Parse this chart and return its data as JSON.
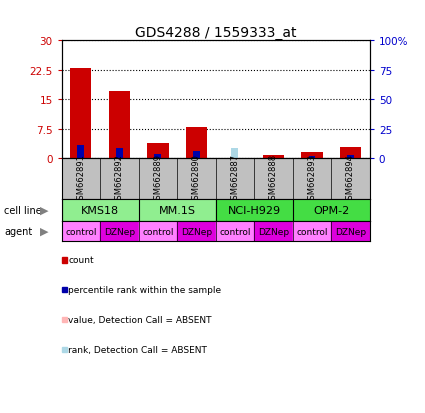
{
  "title": "GDS4288 / 1559333_at",
  "samples": [
    "GSM662891",
    "GSM662892",
    "GSM662889",
    "GSM662890",
    "GSM662887",
    "GSM662888",
    "GSM662893",
    "GSM662894"
  ],
  "count_values": [
    23.0,
    17.0,
    4.0,
    8.0,
    0.2,
    0.8,
    1.5,
    3.0
  ],
  "count_absent": [
    false,
    false,
    false,
    false,
    true,
    false,
    false,
    false
  ],
  "rank_values": [
    11.0,
    8.5,
    3.5,
    6.5,
    8.5,
    0.5,
    2.0,
    2.5
  ],
  "rank_absent": [
    false,
    false,
    false,
    false,
    true,
    false,
    false,
    false
  ],
  "cell_lines": [
    {
      "label": "KMS18",
      "start": 0,
      "end": 2,
      "color": "#90EE90"
    },
    {
      "label": "MM.1S",
      "start": 2,
      "end": 4,
      "color": "#90EE90"
    },
    {
      "label": "NCI-H929",
      "start": 4,
      "end": 6,
      "color": "#44DD44"
    },
    {
      "label": "OPM-2",
      "start": 6,
      "end": 8,
      "color": "#44DD44"
    }
  ],
  "agents": [
    "control",
    "DZNep",
    "control",
    "DZNep",
    "control",
    "DZNep",
    "control",
    "DZNep"
  ],
  "agent_colors": [
    "#FF80FF",
    "#FF40FF",
    "#FF80FF",
    "#FF40FF",
    "#FF80FF",
    "#FF40FF",
    "#FF80FF",
    "#FF40FF"
  ],
  "ylim_left": [
    0,
    30
  ],
  "ylim_right": [
    0,
    100
  ],
  "yticks_left": [
    0,
    7.5,
    15,
    22.5,
    30
  ],
  "yticks_right": [
    0,
    25,
    50,
    75,
    100
  ],
  "ytick_labels_left": [
    "0",
    "7.5",
    "15",
    "22.5",
    "30"
  ],
  "ytick_labels_right": [
    "0",
    "25",
    "50",
    "75",
    "100%"
  ],
  "count_color": "#CC0000",
  "count_absent_color": "#FFB6B6",
  "rank_color": "#0000AA",
  "rank_absent_color": "#ADD8E6",
  "legend_items": [
    {
      "color": "#CC0000",
      "label": "count"
    },
    {
      "color": "#0000AA",
      "label": "percentile rank within the sample"
    },
    {
      "color": "#FFB6B6",
      "label": "value, Detection Call = ABSENT"
    },
    {
      "color": "#ADD8E6",
      "label": "rank, Detection Call = ABSENT"
    }
  ],
  "bg_color": "#FFFFFF",
  "sample_label_area_color": "#C0C0C0",
  "title_fontsize": 10,
  "tick_fontsize": 7.5,
  "sample_fontsize": 6,
  "cellline_fontsize": 8,
  "agent_fontsize": 6.5,
  "legend_fontsize": 6.5
}
